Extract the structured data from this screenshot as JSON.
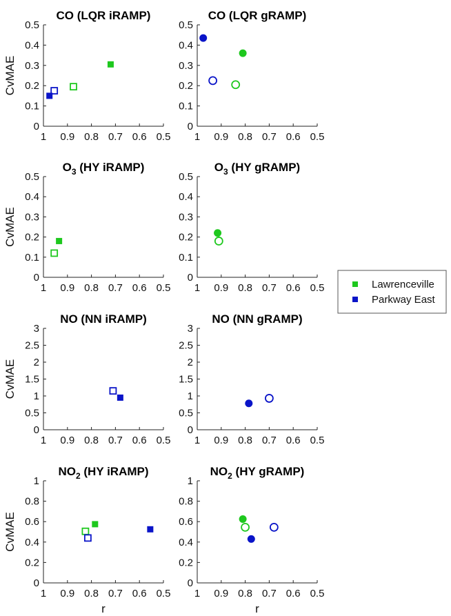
{
  "legend": {
    "items": [
      {
        "label": "Lawrenceville",
        "color": "#1ec81e"
      },
      {
        "label": "Parkway East",
        "color": "#0a14c8"
      }
    ]
  },
  "chart_data": [
    {
      "type": "scatter",
      "title": "CO (LQR iRAMP)",
      "ylabel": "CvMAE",
      "xlabel": "",
      "xlim": [
        1,
        0.5
      ],
      "ylim": [
        0,
        0.5
      ],
      "xticks": [
        1,
        0.9,
        0.8,
        0.7,
        0.6,
        0.5
      ],
      "xticklabels": [
        "1",
        "0.9",
        "0.8",
        "0.7",
        "0.6",
        "0.5"
      ],
      "yticks": [
        0,
        0.1,
        0.2,
        0.3,
        0.4,
        0.5
      ],
      "yticklabels": [
        "0",
        "0.1",
        "0.2",
        "0.3",
        "0.4",
        "0.5"
      ],
      "points": [
        {
          "site": "Lawrenceville",
          "marker": "square",
          "filled": true,
          "x": 0.72,
          "y": 0.305
        },
        {
          "site": "Lawrenceville",
          "marker": "square",
          "filled": false,
          "x": 0.875,
          "y": 0.195
        },
        {
          "site": "Parkway East",
          "marker": "square",
          "filled": false,
          "x": 0.955,
          "y": 0.175
        },
        {
          "site": "Parkway East",
          "marker": "square",
          "filled": true,
          "x": 0.975,
          "y": 0.15
        }
      ]
    },
    {
      "type": "scatter",
      "title": "CO (LQR gRAMP)",
      "ylabel": "",
      "xlabel": "",
      "xlim": [
        1,
        0.5
      ],
      "ylim": [
        0,
        0.5
      ],
      "xticks": [
        1,
        0.9,
        0.8,
        0.7,
        0.6,
        0.5
      ],
      "xticklabels": [
        "1",
        "0.9",
        "0.8",
        "0.7",
        "0.6",
        "0.5"
      ],
      "yticks": [
        0,
        0.1,
        0.2,
        0.3,
        0.4,
        0.5
      ],
      "yticklabels": [
        "0",
        "0.1",
        "0.2",
        "0.3",
        "0.4",
        "0.5"
      ],
      "points": [
        {
          "site": "Parkway East",
          "marker": "circle",
          "filled": true,
          "x": 0.975,
          "y": 0.435
        },
        {
          "site": "Lawrenceville",
          "marker": "circle",
          "filled": true,
          "x": 0.81,
          "y": 0.36
        },
        {
          "site": "Parkway East",
          "marker": "circle",
          "filled": false,
          "x": 0.935,
          "y": 0.225
        },
        {
          "site": "Lawrenceville",
          "marker": "circle",
          "filled": false,
          "x": 0.84,
          "y": 0.205
        }
      ]
    },
    {
      "type": "scatter",
      "title": "O3 (HY iRAMP)",
      "title_main": "O",
      "title_sub": "3",
      "title_rest": " (HY iRAMP)",
      "ylabel": "CvMAE",
      "xlabel": "",
      "xlim": [
        1,
        0.5
      ],
      "ylim": [
        0,
        0.5
      ],
      "xticks": [
        1,
        0.9,
        0.8,
        0.7,
        0.6,
        0.5
      ],
      "xticklabels": [
        "1",
        "0.9",
        "0.8",
        "0.7",
        "0.6",
        "0.5"
      ],
      "yticks": [
        0,
        0.1,
        0.2,
        0.3,
        0.4,
        0.5
      ],
      "yticklabels": [
        "0",
        "0.1",
        "0.2",
        "0.3",
        "0.4",
        "0.5"
      ],
      "points": [
        {
          "site": "Lawrenceville",
          "marker": "square",
          "filled": true,
          "x": 0.935,
          "y": 0.18
        },
        {
          "site": "Lawrenceville",
          "marker": "square",
          "filled": false,
          "x": 0.955,
          "y": 0.12
        }
      ]
    },
    {
      "type": "scatter",
      "title": "O3 (HY gRAMP)",
      "title_main": "O",
      "title_sub": "3",
      "title_rest": " (HY gRAMP)",
      "ylabel": "",
      "xlabel": "",
      "xlim": [
        1,
        0.5
      ],
      "ylim": [
        0,
        0.5
      ],
      "xticks": [
        1,
        0.9,
        0.8,
        0.7,
        0.6,
        0.5
      ],
      "xticklabels": [
        "1",
        "0.9",
        "0.8",
        "0.7",
        "0.6",
        "0.5"
      ],
      "yticks": [
        0,
        0.1,
        0.2,
        0.3,
        0.4,
        0.5
      ],
      "yticklabels": [
        "0",
        "0.1",
        "0.2",
        "0.3",
        "0.4",
        "0.5"
      ],
      "points": [
        {
          "site": "Lawrenceville",
          "marker": "circle",
          "filled": true,
          "x": 0.915,
          "y": 0.22
        },
        {
          "site": "Lawrenceville",
          "marker": "circle",
          "filled": false,
          "x": 0.91,
          "y": 0.18
        }
      ]
    },
    {
      "type": "scatter",
      "title": "NO (NN iRAMP)",
      "ylabel": "CvMAE",
      "xlabel": "",
      "xlim": [
        1,
        0.5
      ],
      "ylim": [
        0,
        3
      ],
      "xticks": [
        1,
        0.9,
        0.8,
        0.7,
        0.6,
        0.5
      ],
      "xticklabels": [
        "1",
        "0.9",
        "0.8",
        "0.7",
        "0.6",
        "0.5"
      ],
      "yticks": [
        0,
        0.5,
        1,
        1.5,
        2,
        2.5,
        3
      ],
      "yticklabels": [
        "0",
        "0.5",
        "1",
        "1.5",
        "2",
        "2.5",
        "3"
      ],
      "points": [
        {
          "site": "Parkway East",
          "marker": "square",
          "filled": false,
          "x": 0.71,
          "y": 1.15
        },
        {
          "site": "Parkway East",
          "marker": "square",
          "filled": true,
          "x": 0.68,
          "y": 0.95
        }
      ]
    },
    {
      "type": "scatter",
      "title": "NO (NN gRAMP)",
      "ylabel": "",
      "xlabel": "",
      "xlim": [
        1,
        0.5
      ],
      "ylim": [
        0,
        3
      ],
      "xticks": [
        1,
        0.9,
        0.8,
        0.7,
        0.6,
        0.5
      ],
      "xticklabels": [
        "1",
        "0.9",
        "0.8",
        "0.7",
        "0.6",
        "0.5"
      ],
      "yticks": [
        0,
        0.5,
        1,
        1.5,
        2,
        2.5,
        3
      ],
      "yticklabels": [
        "0",
        "0.5",
        "1",
        "1.5",
        "2",
        "2.5",
        "3"
      ],
      "points": [
        {
          "site": "Parkway East",
          "marker": "circle",
          "filled": false,
          "x": 0.7,
          "y": 0.93
        },
        {
          "site": "Parkway East",
          "marker": "circle",
          "filled": true,
          "x": 0.785,
          "y": 0.78
        }
      ]
    },
    {
      "type": "scatter",
      "title": "NO2 (HY iRAMP)",
      "title_main": "NO",
      "title_sub": "2",
      "title_rest": " (HY iRAMP)",
      "ylabel": "CvMAE",
      "xlabel": "r",
      "xlim": [
        1,
        0.5
      ],
      "ylim": [
        0,
        1
      ],
      "xticks": [
        1,
        0.9,
        0.8,
        0.7,
        0.6,
        0.5
      ],
      "xticklabels": [
        "1",
        "0.9",
        "0.8",
        "0.7",
        "0.6",
        "0.5"
      ],
      "yticks": [
        0,
        0.2,
        0.4,
        0.6,
        0.8,
        1
      ],
      "yticklabels": [
        "0",
        "0.2",
        "0.4",
        "0.6",
        "0.8",
        "1"
      ],
      "points": [
        {
          "site": "Lawrenceville",
          "marker": "square",
          "filled": true,
          "x": 0.785,
          "y": 0.575
        },
        {
          "site": "Lawrenceville",
          "marker": "square",
          "filled": false,
          "x": 0.825,
          "y": 0.505
        },
        {
          "site": "Parkway East",
          "marker": "square",
          "filled": true,
          "x": 0.555,
          "y": 0.525
        },
        {
          "site": "Parkway East",
          "marker": "square",
          "filled": false,
          "x": 0.815,
          "y": 0.44
        }
      ]
    },
    {
      "type": "scatter",
      "title": "NO2 (HY gRAMP)",
      "title_main": "NO",
      "title_sub": "2",
      "title_rest": " (HY gRAMP)",
      "ylabel": "",
      "xlabel": "r",
      "xlim": [
        1,
        0.5
      ],
      "ylim": [
        0,
        1
      ],
      "xticks": [
        1,
        0.9,
        0.8,
        0.7,
        0.6,
        0.5
      ],
      "xticklabels": [
        "1",
        "0.9",
        "0.8",
        "0.7",
        "0.6",
        "0.5"
      ],
      "yticks": [
        0,
        0.2,
        0.4,
        0.6,
        0.8,
        1
      ],
      "yticklabels": [
        "0",
        "0.2",
        "0.4",
        "0.6",
        "0.8",
        "1"
      ],
      "points": [
        {
          "site": "Lawrenceville",
          "marker": "circle",
          "filled": true,
          "x": 0.81,
          "y": 0.625
        },
        {
          "site": "Lawrenceville",
          "marker": "circle",
          "filled": false,
          "x": 0.8,
          "y": 0.545
        },
        {
          "site": "Parkway East",
          "marker": "circle",
          "filled": false,
          "x": 0.68,
          "y": 0.545
        },
        {
          "site": "Parkway East",
          "marker": "circle",
          "filled": true,
          "x": 0.775,
          "y": 0.43
        }
      ]
    }
  ]
}
